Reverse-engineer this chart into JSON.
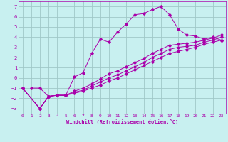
{
  "xlabel": "Windchill (Refroidissement éolien,°C)",
  "bg_color": "#c8f0f0",
  "grid_color": "#a0c8c8",
  "line_color": "#aa00aa",
  "xlim": [
    -0.5,
    23.5
  ],
  "ylim": [
    -3.5,
    7.5
  ],
  "xticks": [
    0,
    1,
    2,
    3,
    4,
    5,
    6,
    7,
    8,
    9,
    10,
    11,
    12,
    13,
    14,
    15,
    16,
    17,
    18,
    19,
    20,
    21,
    22,
    23
  ],
  "yticks": [
    -3,
    -2,
    -1,
    0,
    1,
    2,
    3,
    4,
    5,
    6,
    7
  ],
  "line1_x": [
    1,
    2,
    3,
    4,
    5,
    6,
    7,
    8,
    9,
    10,
    11,
    12,
    13,
    14,
    15,
    16,
    17,
    18,
    19,
    20,
    21,
    22,
    23
  ],
  "line1_y": [
    -1.0,
    -1.0,
    -1.8,
    -1.7,
    -1.7,
    0.1,
    0.5,
    2.4,
    3.8,
    3.5,
    4.5,
    5.3,
    6.2,
    6.3,
    6.7,
    7.0,
    6.2,
    4.8,
    4.2,
    4.1,
    3.8,
    4.0,
    3.7
  ],
  "line2_x": [
    0,
    2,
    3,
    4,
    5,
    6,
    7,
    8,
    9,
    10,
    11,
    12,
    13,
    14,
    15,
    16,
    17,
    18,
    19,
    20,
    21,
    22,
    23
  ],
  "line2_y": [
    -1.0,
    -3.0,
    -1.8,
    -1.7,
    -1.7,
    -1.5,
    -1.3,
    -1.0,
    -0.7,
    -0.3,
    0.0,
    0.4,
    0.8,
    1.2,
    1.6,
    2.0,
    2.4,
    2.6,
    2.8,
    3.0,
    3.3,
    3.5,
    3.7
  ],
  "line3_x": [
    0,
    2,
    3,
    4,
    5,
    6,
    7,
    8,
    9,
    10,
    11,
    12,
    13,
    14,
    15,
    16,
    17,
    18,
    19,
    20,
    21,
    22,
    23
  ],
  "line3_y": [
    -1.0,
    -3.0,
    -1.8,
    -1.7,
    -1.7,
    -1.4,
    -1.2,
    -0.8,
    -0.4,
    0.0,
    0.3,
    0.7,
    1.1,
    1.5,
    2.0,
    2.4,
    2.8,
    3.0,
    3.1,
    3.2,
    3.5,
    3.7,
    4.0
  ],
  "line4_x": [
    0,
    2,
    3,
    4,
    5,
    6,
    7,
    8,
    9,
    10,
    11,
    12,
    13,
    14,
    15,
    16,
    17,
    18,
    19,
    20,
    21,
    22,
    23
  ],
  "line4_y": [
    -1.0,
    -3.0,
    -1.8,
    -1.7,
    -1.7,
    -1.3,
    -1.0,
    -0.6,
    -0.1,
    0.4,
    0.7,
    1.1,
    1.5,
    1.9,
    2.4,
    2.8,
    3.2,
    3.3,
    3.4,
    3.5,
    3.7,
    3.9,
    4.2
  ]
}
